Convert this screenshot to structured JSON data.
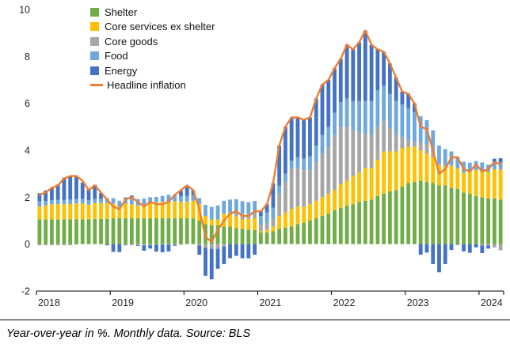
{
  "caption": {
    "text": "Year-over-year in %. Monthly data. Source: BLS"
  },
  "chart_data": {
    "type": "bar",
    "subtype": "stacked-contribution-bars-with-line-overlay",
    "title": "",
    "xlabel": "",
    "ylabel": "",
    "grid": false,
    "legend_position": "top-left-inside",
    "ylim": [
      -2,
      10
    ],
    "yticks": [
      10,
      8,
      6,
      4,
      2,
      0,
      -2
    ],
    "x_axis_tick_labels": [
      "2018",
      "2019",
      "2020",
      "2021",
      "2022",
      "2023",
      "2024"
    ],
    "x": [
      "2018-01",
      "2018-02",
      "2018-03",
      "2018-04",
      "2018-05",
      "2018-06",
      "2018-07",
      "2018-08",
      "2018-09",
      "2018-10",
      "2018-11",
      "2018-12",
      "2019-01",
      "2019-02",
      "2019-03",
      "2019-04",
      "2019-05",
      "2019-06",
      "2019-07",
      "2019-08",
      "2019-09",
      "2019-10",
      "2019-11",
      "2019-12",
      "2020-01",
      "2020-02",
      "2020-03",
      "2020-04",
      "2020-05",
      "2020-06",
      "2020-07",
      "2020-08",
      "2020-09",
      "2020-10",
      "2020-11",
      "2020-12",
      "2021-01",
      "2021-02",
      "2021-03",
      "2021-04",
      "2021-05",
      "2021-06",
      "2021-07",
      "2021-08",
      "2021-09",
      "2021-10",
      "2021-11",
      "2021-12",
      "2022-01",
      "2022-02",
      "2022-03",
      "2022-04",
      "2022-05",
      "2022-06",
      "2022-07",
      "2022-08",
      "2022-09",
      "2022-10",
      "2022-11",
      "2022-12",
      "2023-01",
      "2023-02",
      "2023-03",
      "2023-04",
      "2023-05",
      "2023-06",
      "2023-07",
      "2023-08",
      "2023-09",
      "2023-10",
      "2023-11",
      "2023-12",
      "2024-01",
      "2024-02",
      "2024-03",
      "2024-04"
    ],
    "series": [
      {
        "name": "Shelter",
        "color": "#70AD47",
        "values": [
          1.05,
          1.05,
          1.05,
          1.05,
          1.06,
          1.06,
          1.06,
          1.06,
          1.06,
          1.07,
          1.07,
          1.07,
          1.1,
          1.1,
          1.1,
          1.1,
          1.1,
          1.1,
          1.1,
          1.1,
          1.1,
          1.1,
          1.1,
          1.1,
          1.1,
          1.1,
          1.0,
          0.85,
          0.8,
          0.8,
          0.75,
          0.75,
          0.68,
          0.65,
          0.62,
          0.6,
          0.5,
          0.5,
          0.55,
          0.65,
          0.7,
          0.75,
          0.85,
          0.9,
          1.0,
          1.1,
          1.2,
          1.3,
          1.45,
          1.55,
          1.65,
          1.7,
          1.8,
          1.85,
          1.9,
          2.05,
          2.15,
          2.25,
          2.3,
          2.45,
          2.6,
          2.65,
          2.7,
          2.65,
          2.6,
          2.5,
          2.5,
          2.4,
          2.35,
          2.2,
          2.15,
          2.05,
          2.0,
          1.95,
          1.95,
          1.9
        ]
      },
      {
        "name": "Core services ex shelter",
        "color": "#FFC000",
        "values": [
          0.55,
          0.6,
          0.65,
          0.65,
          0.65,
          0.65,
          0.68,
          0.68,
          0.62,
          0.68,
          0.68,
          0.68,
          0.62,
          0.5,
          0.62,
          0.6,
          0.55,
          0.58,
          0.65,
          0.68,
          0.7,
          0.72,
          0.72,
          0.7,
          0.7,
          0.75,
          0.7,
          0.35,
          0.25,
          0.25,
          0.55,
          0.55,
          0.5,
          0.4,
          0.45,
          0.5,
          0.05,
          0.1,
          0.2,
          0.55,
          0.65,
          0.75,
          0.75,
          0.7,
          0.7,
          0.75,
          0.8,
          0.85,
          0.85,
          1.0,
          1.05,
          1.2,
          1.25,
          1.4,
          1.35,
          1.55,
          1.8,
          1.7,
          1.65,
          1.65,
          1.55,
          1.5,
          1.3,
          1.2,
          1.1,
          0.85,
          0.8,
          0.93,
          0.88,
          0.84,
          0.93,
          1.09,
          1.13,
          1.14,
          1.24,
          1.28
        ]
      },
      {
        "name": "Core goods",
        "color": "#A6A6A6",
        "values": [
          -0.05,
          -0.05,
          -0.05,
          -0.05,
          -0.05,
          -0.05,
          -0.02,
          0.0,
          0.0,
          0.0,
          0.0,
          0.0,
          0.02,
          0.0,
          -0.02,
          -0.05,
          -0.05,
          -0.05,
          -0.05,
          -0.02,
          -0.02,
          -0.02,
          -0.03,
          -0.03,
          0.02,
          0.0,
          -0.05,
          -0.15,
          -0.2,
          -0.2,
          -0.1,
          0.05,
          0.2,
          0.25,
          0.22,
          0.22,
          0.3,
          0.3,
          0.35,
          0.95,
          1.3,
          1.7,
          1.65,
          1.55,
          1.45,
          1.65,
          1.85,
          2.0,
          2.35,
          2.45,
          2.3,
          1.95,
          1.7,
          1.45,
          1.4,
          1.4,
          1.3,
          1.0,
          0.75,
          0.45,
          0.3,
          0.2,
          0.3,
          0.4,
          0.25,
          0.1,
          0.09,
          0.04,
          0.0,
          0.02,
          0.0,
          0.04,
          -0.06,
          -0.06,
          -0.14,
          -0.26
        ]
      },
      {
        "name": "Food",
        "color": "#6FA8DC",
        "values": [
          0.22,
          0.19,
          0.18,
          0.19,
          0.17,
          0.19,
          0.19,
          0.19,
          0.19,
          0.18,
          0.18,
          0.21,
          0.22,
          0.25,
          0.28,
          0.25,
          0.27,
          0.26,
          0.25,
          0.23,
          0.25,
          0.28,
          0.27,
          0.25,
          0.24,
          0.24,
          0.26,
          0.47,
          0.54,
          0.6,
          0.55,
          0.55,
          0.53,
          0.53,
          0.5,
          0.52,
          0.35,
          0.45,
          0.45,
          0.35,
          0.35,
          0.35,
          0.45,
          0.5,
          0.6,
          0.7,
          0.8,
          0.85,
          0.95,
          1.05,
          1.2,
          1.25,
          1.35,
          1.4,
          1.45,
          1.55,
          1.5,
          1.45,
          1.4,
          1.4,
          1.35,
          1.28,
          1.15,
          1.03,
          0.9,
          0.75,
          0.66,
          0.58,
          0.5,
          0.45,
          0.39,
          0.36,
          0.35,
          0.3,
          0.3,
          0.3
        ]
      },
      {
        "name": "Energy",
        "color": "#4472C4",
        "values": [
          0.35,
          0.45,
          0.5,
          0.65,
          0.95,
          1.0,
          0.95,
          0.7,
          0.45,
          0.6,
          0.25,
          -0.05,
          -0.33,
          -0.34,
          -0.03,
          0.12,
          -0.03,
          -0.23,
          -0.14,
          -0.3,
          -0.33,
          -0.29,
          -0.04,
          0.23,
          0.43,
          0.2,
          -0.4,
          -1.2,
          -1.3,
          -0.85,
          -0.75,
          -0.6,
          -0.5,
          -0.6,
          -0.6,
          -0.45,
          0.2,
          0.35,
          1.05,
          1.7,
          2.0,
          1.85,
          1.7,
          1.65,
          1.65,
          2.0,
          2.15,
          2.0,
          1.9,
          1.85,
          2.3,
          2.2,
          2.5,
          3.0,
          2.4,
          1.75,
          1.45,
          1.3,
          1.0,
          0.55,
          0.62,
          0.37,
          -0.45,
          -0.36,
          -0.85,
          -1.2,
          -0.85,
          -0.25,
          -0.03,
          -0.31,
          -0.37,
          -0.14,
          -0.32,
          -0.13,
          0.15,
          0.18
        ]
      }
    ],
    "line_series": {
      "name": "Headline inflation",
      "color": "#ED7D31",
      "values": [
        2.1,
        2.2,
        2.4,
        2.5,
        2.8,
        2.9,
        2.9,
        2.7,
        2.3,
        2.5,
        2.2,
        1.9,
        1.6,
        1.5,
        1.9,
        2.0,
        1.8,
        1.6,
        1.8,
        1.7,
        1.7,
        1.8,
        2.1,
        2.3,
        2.5,
        2.3,
        1.5,
        0.3,
        0.1,
        0.6,
        1.0,
        1.3,
        1.4,
        1.2,
        1.2,
        1.4,
        1.4,
        1.7,
        2.6,
        4.2,
        5.0,
        5.4,
        5.4,
        5.3,
        5.4,
        6.2,
        6.8,
        7.0,
        7.5,
        7.9,
        8.5,
        8.3,
        8.6,
        9.1,
        8.5,
        8.3,
        8.2,
        7.7,
        7.1,
        6.5,
        6.4,
        6.0,
        5.0,
        4.9,
        4.0,
        3.0,
        3.2,
        3.7,
        3.7,
        3.2,
        3.1,
        3.4,
        3.1,
        3.2,
        3.5,
        3.4
      ]
    }
  }
}
